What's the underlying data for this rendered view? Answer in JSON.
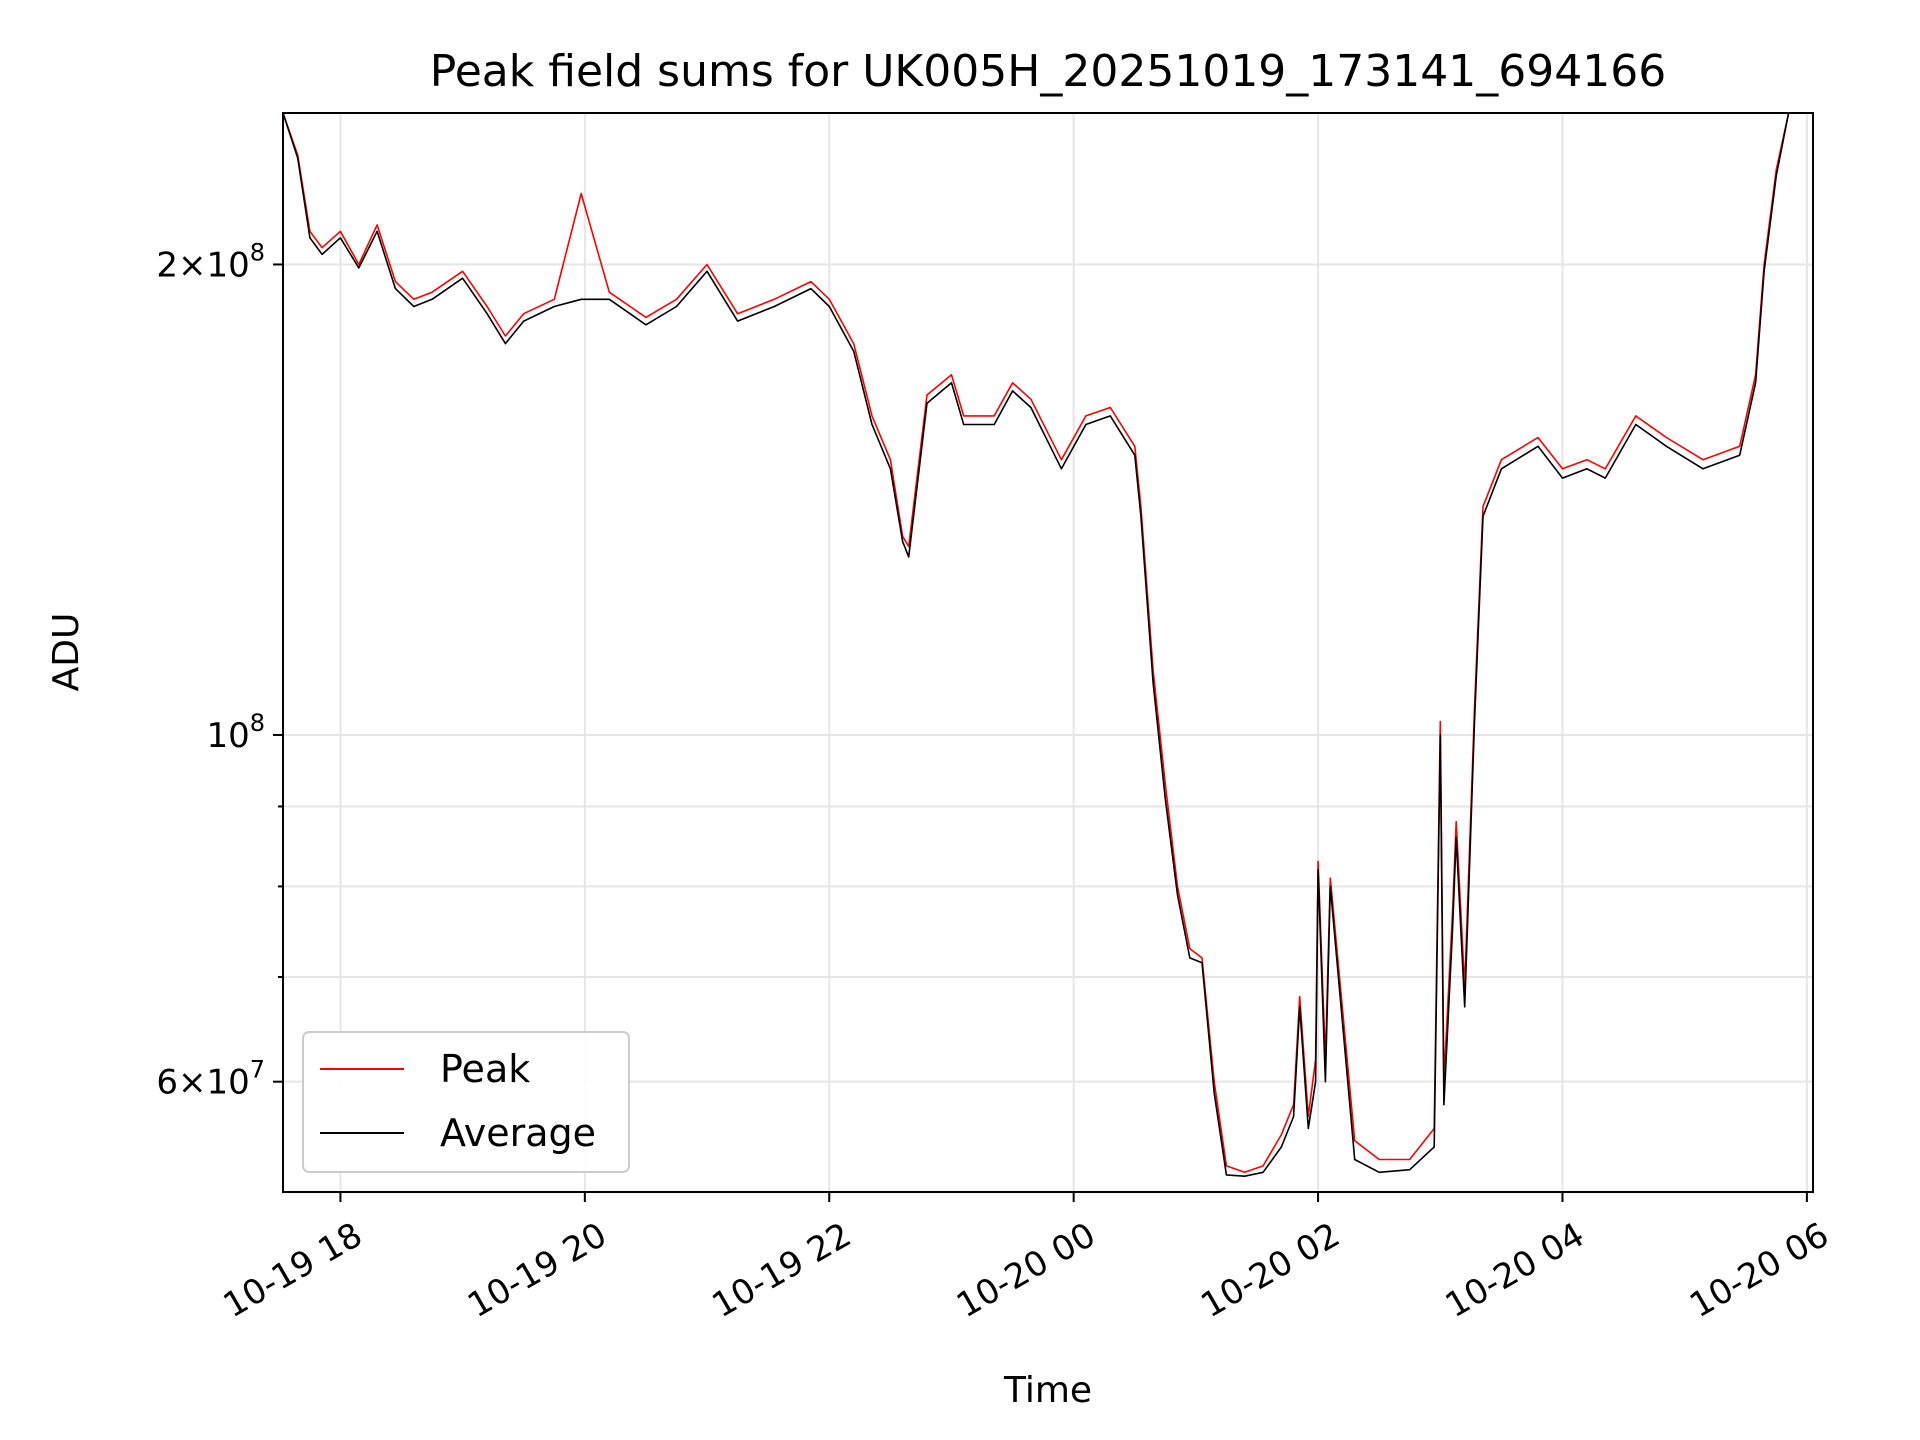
{
  "chart_data": {
    "type": "line",
    "title": "Peak field sums for UK005H_20251019_173141_694166",
    "xlabel": "Time",
    "ylabel": "ADU",
    "y_scale": "log",
    "ylim": [
      51000000,
      250000000
    ],
    "x_unit": "hours since 2025-10-19 00:00",
    "xlim": [
      17.53,
      30.05
    ],
    "grid": true,
    "legend_position": "lower-left",
    "x_ticks": [
      {
        "label": "10-19 18",
        "value": 18
      },
      {
        "label": "10-19 20",
        "value": 20
      },
      {
        "label": "10-19 22",
        "value": 22
      },
      {
        "label": "10-20 00",
        "value": 24
      },
      {
        "label": "10-20 02",
        "value": 26
      },
      {
        "label": "10-20 04",
        "value": 28
      },
      {
        "label": "10-20 06",
        "value": 30
      }
    ],
    "y_major_ticks": [
      {
        "base": "2",
        "exp": "8",
        "value": 200000000
      },
      {
        "base": "",
        "exp": "8",
        "value": 100000000
      },
      {
        "base": "6",
        "exp": "7",
        "value": 60000000
      }
    ],
    "y_minor_gridlines": [
      70000000,
      80000000,
      90000000
    ],
    "series": [
      {
        "name": "Peak",
        "color": "#ff0000",
        "x": [
          17.53,
          17.65,
          17.75,
          17.85,
          18.0,
          18.15,
          18.3,
          18.45,
          18.6,
          18.75,
          19.0,
          19.2,
          19.35,
          19.5,
          19.75,
          19.97,
          20.2,
          20.5,
          20.75,
          21.0,
          21.25,
          21.55,
          21.85,
          22.0,
          22.2,
          22.35,
          22.5,
          22.6,
          22.65,
          22.8,
          23.0,
          23.1,
          23.35,
          23.5,
          23.65,
          23.9,
          24.1,
          24.3,
          24.5,
          24.55,
          24.65,
          24.75,
          24.85,
          24.95,
          25.05,
          25.15,
          25.25,
          25.4,
          25.55,
          25.7,
          25.8,
          25.85,
          25.92,
          25.98,
          26.0,
          26.06,
          26.1,
          26.3,
          26.5,
          26.75,
          26.95,
          27.0,
          27.03,
          27.1,
          27.13,
          27.2,
          27.28,
          27.35,
          27.5,
          27.8,
          28.0,
          28.2,
          28.35,
          28.6,
          28.85,
          29.15,
          29.45,
          29.58,
          29.65,
          29.75,
          29.85,
          29.95,
          30.05
        ],
        "y": [
          250000000,
          235000000,
          210000000,
          205000000,
          210000000,
          200000000,
          212000000,
          195000000,
          190000000,
          192000000,
          198000000,
          188000000,
          180000000,
          186000000,
          190000000,
          222000000,
          192000000,
          185000000,
          190000000,
          200000000,
          186000000,
          190000000,
          195000000,
          190000000,
          178000000,
          160000000,
          150000000,
          134000000,
          132000000,
          165000000,
          170000000,
          160000000,
          160000000,
          168000000,
          164000000,
          150000000,
          160000000,
          162000000,
          153000000,
          140000000,
          110000000,
          93000000,
          80000000,
          73000000,
          72000000,
          60000000,
          53000000,
          52500000,
          53000000,
          55500000,
          58000000,
          68000000,
          57000000,
          62000000,
          83000000,
          62000000,
          81000000,
          55000000,
          53500000,
          53500000,
          56000000,
          102000000,
          60000000,
          77000000,
          88000000,
          69000000,
          104000000,
          140000000,
          150000000,
          155000000,
          148000000,
          150000000,
          148000000,
          160000000,
          155000000,
          150000000,
          153000000,
          170000000,
          200000000,
          230000000,
          250000000,
          250000000,
          250000000
        ]
      },
      {
        "name": "Average",
        "color": "#000000",
        "x": [
          17.53,
          17.65,
          17.75,
          17.85,
          18.0,
          18.15,
          18.3,
          18.45,
          18.6,
          18.75,
          19.0,
          19.2,
          19.35,
          19.5,
          19.75,
          19.97,
          20.2,
          20.5,
          20.75,
          21.0,
          21.25,
          21.55,
          21.85,
          22.0,
          22.2,
          22.35,
          22.5,
          22.6,
          22.65,
          22.8,
          23.0,
          23.1,
          23.35,
          23.5,
          23.65,
          23.9,
          24.1,
          24.3,
          24.5,
          24.55,
          24.65,
          24.75,
          24.85,
          24.95,
          25.05,
          25.15,
          25.25,
          25.4,
          25.55,
          25.7,
          25.8,
          25.85,
          25.92,
          25.98,
          26.0,
          26.06,
          26.1,
          26.3,
          26.5,
          26.75,
          26.95,
          27.0,
          27.03,
          27.1,
          27.13,
          27.2,
          27.28,
          27.35,
          27.5,
          27.8,
          28.0,
          28.2,
          28.35,
          28.6,
          28.85,
          29.15,
          29.45,
          29.58,
          29.65,
          29.75,
          29.85,
          29.95,
          30.05
        ],
        "y": [
          250000000,
          234000000,
          208000000,
          203000000,
          208000000,
          199000000,
          210000000,
          193000000,
          188000000,
          190000000,
          196000000,
          186000000,
          178000000,
          184000000,
          188000000,
          190000000,
          190000000,
          183000000,
          188000000,
          198000000,
          184000000,
          188000000,
          193000000,
          188000000,
          176000000,
          158000000,
          148000000,
          133000000,
          130000000,
          163000000,
          168000000,
          158000000,
          158000000,
          166000000,
          162000000,
          148000000,
          158000000,
          160000000,
          151000000,
          138000000,
          108000000,
          91000000,
          79000000,
          72000000,
          71500000,
          59000000,
          52300000,
          52200000,
          52500000,
          54500000,
          57000000,
          67000000,
          56000000,
          60000000,
          82000000,
          60000000,
          80000000,
          53500000,
          52500000,
          52700000,
          54500000,
          100000000,
          58000000,
          75000000,
          86000000,
          67000000,
          102000000,
          138000000,
          148000000,
          153000000,
          146000000,
          148000000,
          146000000,
          158000000,
          153000000,
          148000000,
          151000000,
          168000000,
          198000000,
          228000000,
          250000000,
          250000000,
          250000000
        ]
      }
    ]
  }
}
